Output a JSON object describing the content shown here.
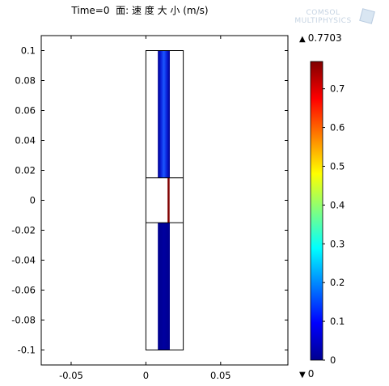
{
  "title": "Time=0  面: 速 度 大 小 (m/s)",
  "logo": {
    "line1": "COMSOL",
    "line2": "MULTIPHYSICS"
  },
  "colorbar": {
    "max_label": "0.7703",
    "min_label": "0",
    "max_marker": "▲",
    "min_marker": "▼",
    "ticks": [
      "0",
      "0.1",
      "0.2",
      "0.3",
      "0.4",
      "0.5",
      "0.6",
      "0.7"
    ],
    "tick_values": [
      0,
      0.1,
      0.2,
      0.3,
      0.4,
      0.5,
      0.6,
      0.7
    ],
    "range": [
      0,
      0.7703
    ],
    "colormap": [
      "#00008f",
      "#0000ff",
      "#0080ff",
      "#00ffff",
      "#80ff80",
      "#ffff00",
      "#ff8000",
      "#ff0000",
      "#800000"
    ]
  },
  "chart_data": {
    "type": "heatmap",
    "title": "Time=0  面: 速 度 大 小 (m/s)",
    "xlabel": "",
    "ylabel": "",
    "xlim": [
      -0.07,
      0.095
    ],
    "ylim": [
      -0.11,
      0.11
    ],
    "x_ticks": [
      -0.05,
      0,
      0.05
    ],
    "x_tick_labels": [
      "-0.05",
      "0",
      "0.05"
    ],
    "y_ticks": [
      0.1,
      0.08,
      0.06,
      0.04,
      0.02,
      0,
      -0.02,
      -0.04,
      -0.06,
      -0.08,
      -0.1
    ],
    "y_tick_labels": [
      "0.1",
      "0.08",
      "0.06",
      "0.04",
      "0.02",
      "0",
      "-0.02",
      "-0.04",
      "-0.06",
      "-0.08",
      "-0.1"
    ],
    "grid": false,
    "geometry": {
      "outer_rect": {
        "x": [
          0,
          0.025
        ],
        "y": [
          -0.1,
          0.1
        ]
      },
      "middle_section": {
        "y": [
          -0.015,
          0.015
        ]
      },
      "channel": {
        "x": [
          0.008,
          0.016
        ]
      }
    },
    "field": {
      "name": "velocity magnitude",
      "unit": "m/s",
      "min": 0,
      "max": 0.7703,
      "upper_channel_value": 0.05,
      "lower_channel_value": 0.02,
      "gap_value": 0.7703
    },
    "colors": {
      "low": "#00008f",
      "mid": "#1a5cff",
      "high": "#800000"
    }
  }
}
